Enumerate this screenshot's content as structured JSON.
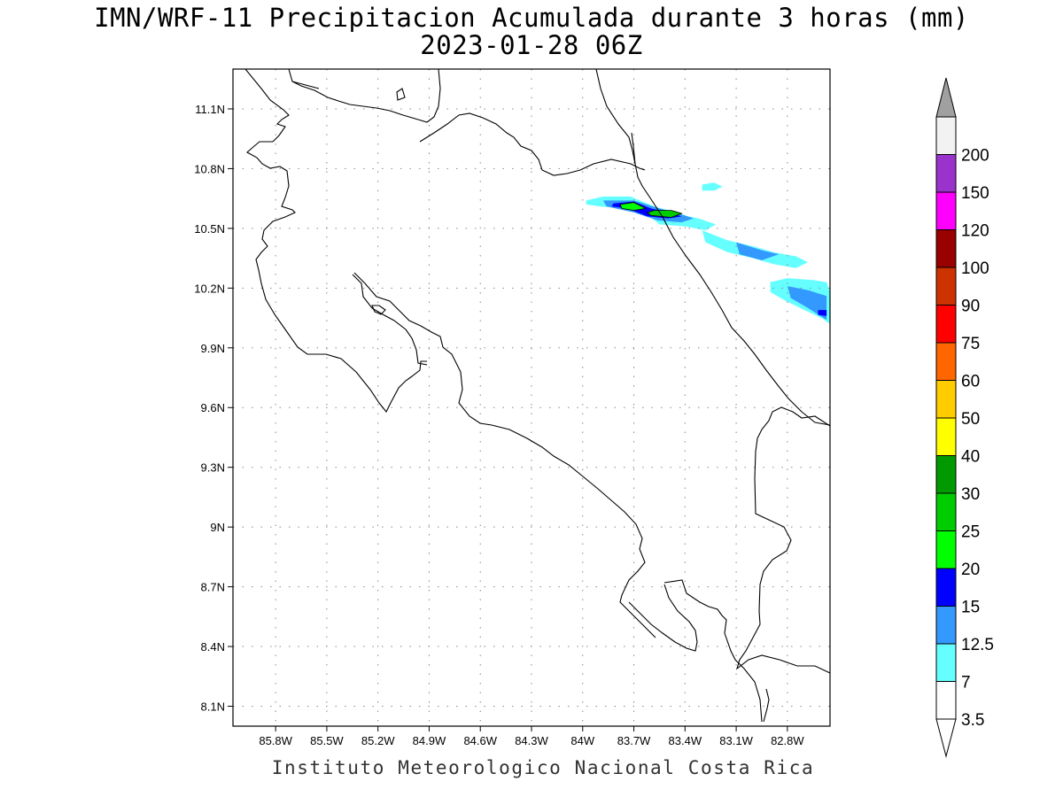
{
  "title_line1": "IMN/WRF-11 Precipitacion Acumulada durante 3 horas (mm)",
  "title_line2": "2023-01-28 06Z",
  "credit": "Instituto Meteorologico Nacional Costa Rica",
  "map": {
    "lon_range": [
      -86.05,
      -82.55
    ],
    "lat_range": [
      8.0,
      11.3
    ],
    "grid": "dotted",
    "lat_ticks": [
      {
        "value": 11.1,
        "label": "11.1N"
      },
      {
        "value": 10.8,
        "label": "10.8N"
      },
      {
        "value": 10.5,
        "label": "10.5N"
      },
      {
        "value": 10.2,
        "label": "10.2N"
      },
      {
        "value": 9.9,
        "label": "9.9N"
      },
      {
        "value": 9.6,
        "label": "9.6N"
      },
      {
        "value": 9.3,
        "label": "9.3N"
      },
      {
        "value": 9.0,
        "label": "9N"
      },
      {
        "value": 8.7,
        "label": "8.7N"
      },
      {
        "value": 8.4,
        "label": "8.4N"
      },
      {
        "value": 8.1,
        "label": "8.1N"
      }
    ],
    "lon_ticks": [
      {
        "value": -85.8,
        "label": "85.8W"
      },
      {
        "value": -85.5,
        "label": "85.5W"
      },
      {
        "value": -85.2,
        "label": "85.2W"
      },
      {
        "value": -84.9,
        "label": "84.9W"
      },
      {
        "value": -84.6,
        "label": "84.6W"
      },
      {
        "value": -84.3,
        "label": "84.3W"
      },
      {
        "value": -84.0,
        "label": "84W"
      },
      {
        "value": -83.7,
        "label": "83.7W"
      },
      {
        "value": -83.4,
        "label": "83.4W"
      },
      {
        "value": -83.1,
        "label": "83.1W"
      },
      {
        "value": -82.8,
        "label": "82.8W"
      }
    ]
  },
  "colorbar": {
    "labels": [
      "3.5",
      "7",
      "12.5",
      "15",
      "20",
      "25",
      "30",
      "40",
      "50",
      "60",
      "75",
      "90",
      "100",
      "120",
      "150",
      "200"
    ],
    "colors": [
      "#ffffff",
      "#66ffff",
      "#3399ff",
      "#0000ff",
      "#00ff00",
      "#00cc00",
      "#009900",
      "#ffff00",
      "#ffcc00",
      "#ff6600",
      "#ff0000",
      "#cc3300",
      "#990000",
      "#ff00ff",
      "#9933cc",
      "#f2f2f2"
    ],
    "top_arrow_color": "#a0a0a0",
    "bottom_arrow_color": "#ffffff"
  },
  "precip_regions": [
    {
      "level": "3.5",
      "color": "#66ffff",
      "lonlat": [
        [
          -83.98,
          10.64
        ],
        [
          -83.88,
          10.66
        ],
        [
          -83.72,
          10.66
        ],
        [
          -83.58,
          10.61
        ],
        [
          -83.45,
          10.58
        ],
        [
          -83.38,
          10.56
        ],
        [
          -83.32,
          10.55
        ],
        [
          -83.22,
          10.52
        ],
        [
          -83.28,
          10.49
        ],
        [
          -83.4,
          10.51
        ],
        [
          -83.55,
          10.52
        ],
        [
          -83.62,
          10.57
        ],
        [
          -83.75,
          10.6
        ],
        [
          -83.9,
          10.61
        ],
        [
          -83.98,
          10.62
        ]
      ]
    },
    {
      "level": "3.5",
      "color": "#66ffff",
      "lonlat": [
        [
          -83.3,
          10.49
        ],
        [
          -83.15,
          10.44
        ],
        [
          -83.0,
          10.41
        ],
        [
          -82.88,
          10.38
        ],
        [
          -82.75,
          10.36
        ],
        [
          -82.68,
          10.33
        ],
        [
          -82.75,
          10.3
        ],
        [
          -82.88,
          10.32
        ],
        [
          -83.0,
          10.35
        ],
        [
          -83.15,
          10.38
        ],
        [
          -83.28,
          10.43
        ]
      ]
    },
    {
      "level": "3.5",
      "color": "#66ffff",
      "lonlat": [
        [
          -82.9,
          10.23
        ],
        [
          -82.8,
          10.25
        ],
        [
          -82.65,
          10.24
        ],
        [
          -82.57,
          10.23
        ],
        [
          -82.55,
          10.18
        ],
        [
          -82.55,
          10.02
        ],
        [
          -82.6,
          10.05
        ],
        [
          -82.7,
          10.09
        ],
        [
          -82.82,
          10.14
        ],
        [
          -82.9,
          10.18
        ]
      ]
    },
    {
      "level": "3.5",
      "color": "#66ffff",
      "lonlat": [
        [
          -83.3,
          10.72
        ],
        [
          -83.23,
          10.73
        ],
        [
          -83.18,
          10.71
        ],
        [
          -83.23,
          10.69
        ],
        [
          -83.3,
          10.69
        ]
      ]
    },
    {
      "level": "7",
      "color": "#3399ff",
      "lonlat": [
        [
          -83.88,
          10.64
        ],
        [
          -83.7,
          10.64
        ],
        [
          -83.55,
          10.6
        ],
        [
          -83.42,
          10.57
        ],
        [
          -83.35,
          10.55
        ],
        [
          -83.42,
          10.53
        ],
        [
          -83.56,
          10.54
        ],
        [
          -83.7,
          10.58
        ],
        [
          -83.86,
          10.61
        ]
      ]
    },
    {
      "level": "7",
      "color": "#3399ff",
      "lonlat": [
        [
          -83.1,
          10.43
        ],
        [
          -82.95,
          10.39
        ],
        [
          -82.85,
          10.37
        ],
        [
          -82.95,
          10.34
        ],
        [
          -83.08,
          10.37
        ]
      ]
    },
    {
      "level": "7",
      "color": "#3399ff",
      "lonlat": [
        [
          -82.8,
          10.21
        ],
        [
          -82.68,
          10.19
        ],
        [
          -82.57,
          10.16
        ],
        [
          -82.57,
          10.04
        ],
        [
          -82.68,
          10.1
        ],
        [
          -82.78,
          10.15
        ]
      ]
    },
    {
      "level": "12.5",
      "color": "#0000ff",
      "lonlat": [
        [
          -83.82,
          10.625
        ],
        [
          -83.7,
          10.635
        ],
        [
          -83.6,
          10.6
        ],
        [
          -83.5,
          10.58
        ],
        [
          -83.42,
          10.56
        ],
        [
          -83.5,
          10.55
        ],
        [
          -83.62,
          10.56
        ],
        [
          -83.74,
          10.6
        ],
        [
          -83.83,
          10.61
        ]
      ]
    },
    {
      "level": "12.5",
      "color": "#0000ff",
      "lonlat": [
        [
          -82.62,
          10.09
        ],
        [
          -82.57,
          10.09
        ],
        [
          -82.57,
          10.06
        ],
        [
          -82.62,
          10.065
        ]
      ]
    },
    {
      "level": "15",
      "color": "#00ff00",
      "lonlat": [
        [
          -83.78,
          10.62
        ],
        [
          -83.7,
          10.63
        ],
        [
          -83.63,
          10.6
        ],
        [
          -83.7,
          10.59
        ],
        [
          -83.77,
          10.6
        ]
      ]
    },
    {
      "level": "20",
      "color": "#00cc00",
      "lonlat": [
        [
          -83.58,
          10.59
        ],
        [
          -83.48,
          10.59
        ],
        [
          -83.42,
          10.575
        ],
        [
          -83.48,
          10.555
        ],
        [
          -83.6,
          10.565
        ],
        [
          -83.62,
          10.58
        ]
      ]
    }
  ]
}
